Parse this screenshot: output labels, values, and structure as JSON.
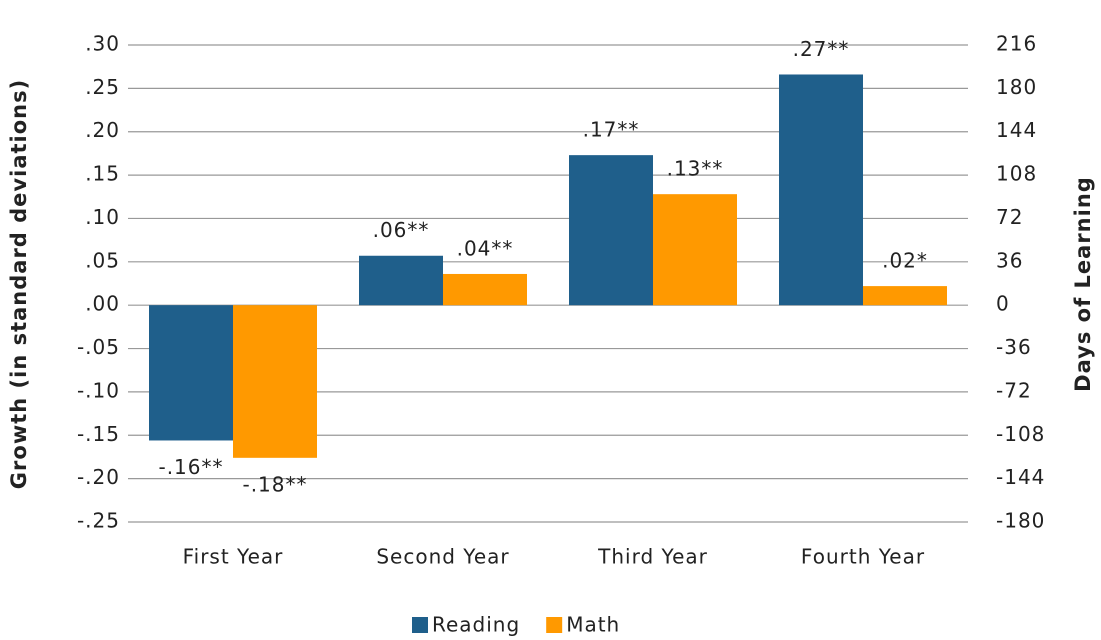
{
  "chart_data": {
    "type": "bar",
    "ylabel": "Growth (in standard deviations)",
    "y2label": "Days of Learning",
    "categories": [
      "First Year",
      "Second Year",
      "Third Year",
      "Fourth Year"
    ],
    "series": [
      {
        "name": "Reading",
        "color": "#1f5f8b",
        "values": [
          -0.156,
          0.057,
          0.173,
          0.266
        ],
        "value_labels": [
          "-.16**",
          ".06**",
          ".17**",
          ".27**"
        ]
      },
      {
        "name": "Math",
        "color": "#ff9900",
        "values": [
          -0.176,
          0.036,
          0.128,
          0.022
        ],
        "value_labels": [
          "-.18**",
          ".04**",
          ".13**",
          ".02*"
        ]
      }
    ],
    "ylim": [
      -0.25,
      0.3
    ],
    "yticks": [
      {
        "value": 0.3,
        "label": ".30"
      },
      {
        "value": 0.25,
        "label": ".25"
      },
      {
        "value": 0.2,
        "label": ".20"
      },
      {
        "value": 0.15,
        "label": ".15"
      },
      {
        "value": 0.1,
        "label": ".10"
      },
      {
        "value": 0.05,
        "label": ".05"
      },
      {
        "value": 0,
        "label": ".00"
      },
      {
        "value": -0.05,
        "label": "-.05"
      },
      {
        "value": -0.1,
        "label": "-.10"
      },
      {
        "value": -0.15,
        "label": "-.15"
      },
      {
        "value": -0.2,
        "label": "-.20"
      },
      {
        "value": -0.25,
        "label": "-.25"
      }
    ],
    "y2lim": [
      -180,
      216
    ],
    "y2ticks": [
      216,
      180,
      144,
      108,
      72,
      36,
      0,
      -36,
      -72,
      -108,
      -144,
      -180
    ],
    "grid": true
  }
}
